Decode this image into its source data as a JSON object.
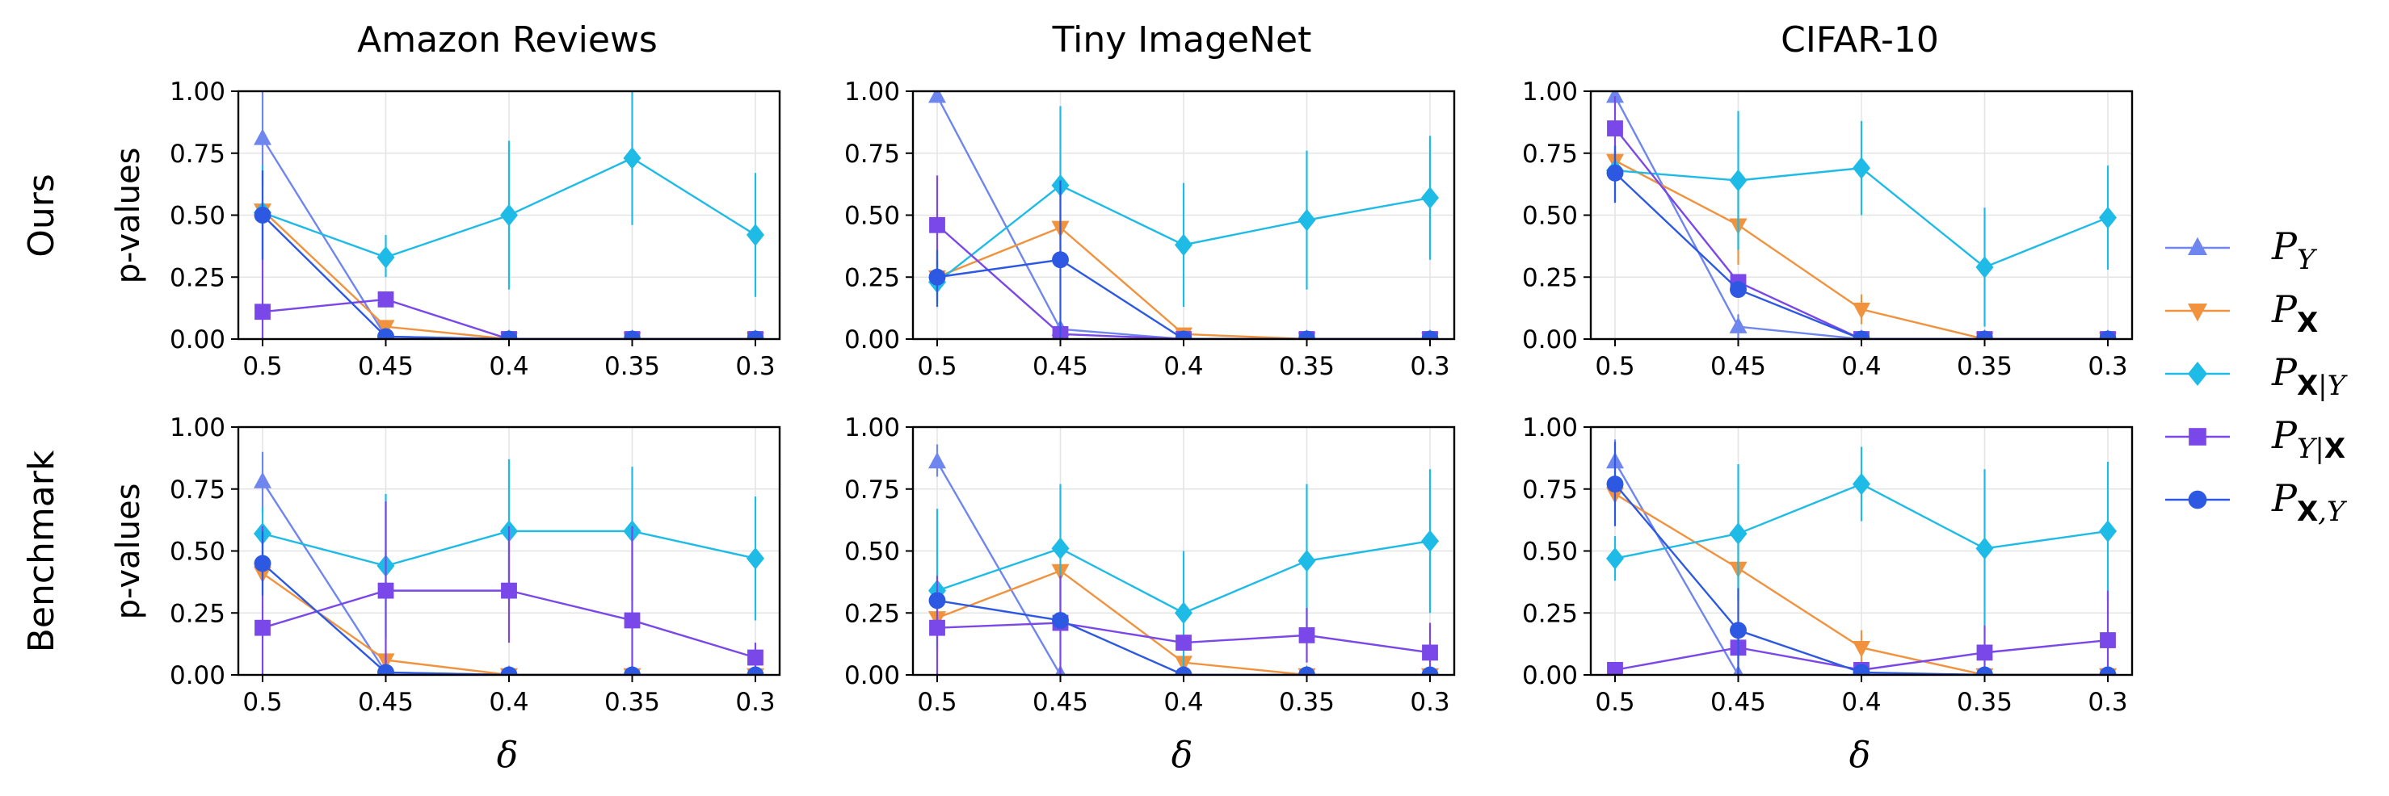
{
  "figure": {
    "row_labels": [
      "Ours",
      "Benchmark"
    ],
    "column_titles": [
      "Amazon Reviews",
      "Tiny ImageNet",
      "CIFAR-10"
    ],
    "ylabel": "p-values",
    "xlabel": "δ"
  },
  "legend": {
    "placement": "right",
    "entries": [
      {
        "key": "PY",
        "label": "P",
        "sub": "Y",
        "sub_bold": false,
        "marker": "triangle-up",
        "color": "#6f86ef"
      },
      {
        "key": "PX",
        "label": "P",
        "sub": "X",
        "sub_bold": true,
        "marker": "triangle-down",
        "color": "#f0923e"
      },
      {
        "key": "PXgY",
        "label": "P",
        "sub": "X|Y",
        "sub_bold": "X",
        "marker": "diamond",
        "color": "#1ebbe6"
      },
      {
        "key": "PYgX",
        "label": "P",
        "sub": "Y|X",
        "sub_bold": "X",
        "marker": "square",
        "color": "#7a47e8"
      },
      {
        "key": "PXY",
        "label": "P",
        "sub": "X,Y",
        "sub_bold": "X",
        "marker": "circle",
        "color": "#2d59e2"
      }
    ]
  },
  "chart_data": [
    {
      "type": "line",
      "title": "Amazon Reviews",
      "row": "Ours",
      "x": [
        "0.5",
        "0.45",
        "0.4",
        "0.35",
        "0.3"
      ],
      "yticks": [
        "0.00",
        "0.25",
        "0.50",
        "0.75",
        "1.00"
      ],
      "ylim": [
        0,
        1
      ],
      "grid": true,
      "series": [
        {
          "name": "PY",
          "values": [
            0.81,
            0.01,
            0.0,
            0.0,
            0.0
          ],
          "err": [
            [
              0.62,
              1.0
            ],
            [
              0.0,
              0.02
            ],
            null,
            null,
            null
          ]
        },
        {
          "name": "PX",
          "values": [
            0.52,
            0.05,
            0.0,
            0.0,
            0.0
          ],
          "err": [
            null,
            null,
            null,
            null,
            null
          ]
        },
        {
          "name": "PXgY",
          "values": [
            0.51,
            0.33,
            0.5,
            0.73,
            0.42
          ],
          "err": [
            [
              0.32,
              0.7
            ],
            [
              0.25,
              0.42
            ],
            [
              0.2,
              0.8
            ],
            [
              0.46,
              1.0
            ],
            [
              0.17,
              0.67
            ]
          ]
        },
        {
          "name": "PYgX",
          "values": [
            0.11,
            0.16,
            0.0,
            0.0,
            0.0
          ],
          "err": [
            [
              0.0,
              0.5
            ],
            null,
            null,
            null,
            null
          ]
        },
        {
          "name": "PXY",
          "values": [
            0.5,
            0.01,
            0.0,
            0.0,
            0.0
          ],
          "err": [
            [
              0.32,
              0.68
            ],
            null,
            null,
            null,
            null
          ]
        }
      ]
    },
    {
      "type": "line",
      "title": "Tiny ImageNet",
      "row": "Ours",
      "x": [
        "0.5",
        "0.45",
        "0.4",
        "0.35",
        "0.3"
      ],
      "yticks": [
        "0.00",
        "0.25",
        "0.50",
        "0.75",
        "1.00"
      ],
      "ylim": [
        0,
        1
      ],
      "grid": true,
      "series": [
        {
          "name": "PY",
          "values": [
            0.98,
            0.04,
            0.0,
            0.0,
            0.0
          ],
          "err": [
            null,
            null,
            null,
            null,
            null
          ]
        },
        {
          "name": "PX",
          "values": [
            0.25,
            0.45,
            0.02,
            0.0,
            0.0
          ],
          "err": [
            null,
            null,
            null,
            null,
            null
          ]
        },
        {
          "name": "PXgY",
          "values": [
            0.23,
            0.62,
            0.38,
            0.48,
            0.57
          ],
          "err": [
            [
              0.15,
              0.32
            ],
            [
              0.32,
              0.94
            ],
            [
              0.13,
              0.63
            ],
            [
              0.2,
              0.76
            ],
            [
              0.32,
              0.82
            ]
          ]
        },
        {
          "name": "PYgX",
          "values": [
            0.46,
            0.02,
            0.0,
            0.0,
            0.0
          ],
          "err": [
            [
              0.27,
              0.66
            ],
            null,
            null,
            null,
            null
          ]
        },
        {
          "name": "PXY",
          "values": [
            0.25,
            0.32,
            0.0,
            0.0,
            0.0
          ],
          "err": [
            [
              0.13,
              0.36
            ],
            [
              0.0,
              0.64
            ],
            null,
            null,
            null
          ]
        }
      ]
    },
    {
      "type": "line",
      "title": "CIFAR-10",
      "row": "Ours",
      "x": [
        "0.5",
        "0.45",
        "0.4",
        "0.35",
        "0.3"
      ],
      "yticks": [
        "0.00",
        "0.25",
        "0.50",
        "0.75",
        "1.00"
      ],
      "ylim": [
        0,
        1
      ],
      "grid": true,
      "series": [
        {
          "name": "PY",
          "values": [
            0.98,
            0.05,
            0.0,
            0.0,
            0.0
          ],
          "err": [
            null,
            [
              0.0,
              0.1
            ],
            null,
            null,
            null
          ]
        },
        {
          "name": "PX",
          "values": [
            0.72,
            0.46,
            0.12,
            0.0,
            0.0
          ],
          "err": [
            null,
            [
              0.3,
              0.62
            ],
            [
              0.06,
              0.18
            ],
            null,
            null
          ]
        },
        {
          "name": "PXgY",
          "values": [
            0.68,
            0.64,
            0.69,
            0.29,
            0.49
          ],
          "err": [
            [
              0.55,
              0.78
            ],
            [
              0.36,
              0.92
            ],
            [
              0.5,
              0.88
            ],
            [
              0.05,
              0.53
            ],
            [
              0.28,
              0.7
            ]
          ]
        },
        {
          "name": "PYgX",
          "values": [
            0.85,
            0.23,
            0.0,
            0.0,
            0.0
          ],
          "err": [
            [
              0.7,
              0.98
            ],
            null,
            null,
            null,
            null
          ]
        },
        {
          "name": "PXY",
          "values": [
            0.67,
            0.2,
            0.0,
            0.0,
            0.0
          ],
          "err": [
            [
              0.55,
              0.78
            ],
            null,
            null,
            null,
            null
          ]
        }
      ]
    },
    {
      "type": "line",
      "title": "Amazon Reviews",
      "row": "Benchmark",
      "x": [
        "0.5",
        "0.45",
        "0.4",
        "0.35",
        "0.3"
      ],
      "yticks": [
        "0.00",
        "0.25",
        "0.50",
        "0.75",
        "1.00"
      ],
      "ylim": [
        0,
        1
      ],
      "grid": true,
      "series": [
        {
          "name": "PY",
          "values": [
            0.78,
            0.01,
            0.0,
            0.0,
            0.0
          ],
          "err": [
            [
              0.65,
              0.9
            ],
            null,
            null,
            null,
            null
          ]
        },
        {
          "name": "PX",
          "values": [
            0.41,
            0.06,
            0.0,
            0.0,
            0.0
          ],
          "err": [
            null,
            null,
            null,
            null,
            null
          ]
        },
        {
          "name": "PXgY",
          "values": [
            0.57,
            0.44,
            0.58,
            0.58,
            0.47
          ],
          "err": [
            [
              0.45,
              0.68
            ],
            [
              0.15,
              0.73
            ],
            [
              0.3,
              0.87
            ],
            [
              0.3,
              0.84
            ],
            [
              0.22,
              0.72
            ]
          ]
        },
        {
          "name": "PYgX",
          "values": [
            0.19,
            0.34,
            0.34,
            0.22,
            0.07
          ],
          "err": [
            [
              0.0,
              0.6
            ],
            [
              0.0,
              0.7
            ],
            [
              0.13,
              0.6
            ],
            [
              0.0,
              0.6
            ],
            [
              0.0,
              0.13
            ]
          ]
        },
        {
          "name": "PXY",
          "values": [
            0.45,
            0.01,
            0.0,
            0.0,
            0.0
          ],
          "err": [
            [
              0.32,
              0.58
            ],
            null,
            null,
            null,
            null
          ]
        }
      ]
    },
    {
      "type": "line",
      "title": "Tiny ImageNet",
      "row": "Benchmark",
      "x": [
        "0.5",
        "0.45",
        "0.4",
        "0.35",
        "0.3"
      ],
      "yticks": [
        "0.00",
        "0.25",
        "0.50",
        "0.75",
        "1.00"
      ],
      "ylim": [
        0,
        1
      ],
      "grid": true,
      "series": [
        {
          "name": "PY",
          "values": [
            0.86,
            0.0,
            0.0,
            0.0,
            0.0
          ],
          "err": [
            [
              0.8,
              0.93
            ],
            null,
            null,
            null,
            null
          ]
        },
        {
          "name": "PX",
          "values": [
            0.23,
            0.42,
            0.05,
            0.0,
            0.0
          ],
          "err": [
            null,
            null,
            null,
            null,
            null
          ]
        },
        {
          "name": "PXgY",
          "values": [
            0.34,
            0.51,
            0.25,
            0.46,
            0.54
          ],
          "err": [
            [
              0.1,
              0.67
            ],
            [
              0.25,
              0.77
            ],
            [
              0.0,
              0.5
            ],
            [
              0.15,
              0.77
            ],
            [
              0.25,
              0.83
            ]
          ]
        },
        {
          "name": "PYgX",
          "values": [
            0.19,
            0.21,
            0.13,
            0.16,
            0.09
          ],
          "err": [
            [
              0.0,
              0.4
            ],
            [
              0.0,
              0.4
            ],
            null,
            [
              0.05,
              0.27
            ],
            [
              0.0,
              0.21
            ]
          ]
        },
        {
          "name": "PXY",
          "values": [
            0.3,
            0.22,
            0.0,
            0.0,
            0.0
          ],
          "err": [
            null,
            null,
            null,
            null,
            null
          ]
        }
      ]
    },
    {
      "type": "line",
      "title": "CIFAR-10",
      "row": "Benchmark",
      "x": [
        "0.5",
        "0.45",
        "0.4",
        "0.35",
        "0.3"
      ],
      "yticks": [
        "0.00",
        "0.25",
        "0.50",
        "0.75",
        "1.00"
      ],
      "ylim": [
        0,
        1
      ],
      "grid": true,
      "series": [
        {
          "name": "PY",
          "values": [
            0.86,
            0.0,
            0.0,
            0.0,
            0.0
          ],
          "err": [
            [
              0.77,
              0.95
            ],
            null,
            null,
            null,
            null
          ]
        },
        {
          "name": "PX",
          "values": [
            0.73,
            0.43,
            0.11,
            0.0,
            0.0
          ],
          "err": [
            null,
            [
              0.22,
              0.66
            ],
            [
              0.05,
              0.18
            ],
            null,
            null
          ]
        },
        {
          "name": "PXgY",
          "values": [
            0.47,
            0.57,
            0.77,
            0.51,
            0.58
          ],
          "err": [
            [
              0.38,
              0.56
            ],
            [
              0.3,
              0.85
            ],
            [
              0.62,
              0.92
            ],
            [
              0.2,
              0.83
            ],
            [
              0.3,
              0.86
            ]
          ]
        },
        {
          "name": "PYgX",
          "values": [
            0.02,
            0.11,
            0.02,
            0.09,
            0.14
          ],
          "err": [
            null,
            [
              0.0,
              0.2
            ],
            [
              0.0,
              0.05
            ],
            [
              0.0,
              0.2
            ],
            [
              0.0,
              0.34
            ]
          ]
        },
        {
          "name": "PXY",
          "values": [
            0.77,
            0.18,
            0.01,
            0.0,
            0.0
          ],
          "err": [
            [
              0.6,
              0.94
            ],
            [
              0.0,
              0.35
            ],
            null,
            null,
            null
          ]
        }
      ]
    }
  ]
}
